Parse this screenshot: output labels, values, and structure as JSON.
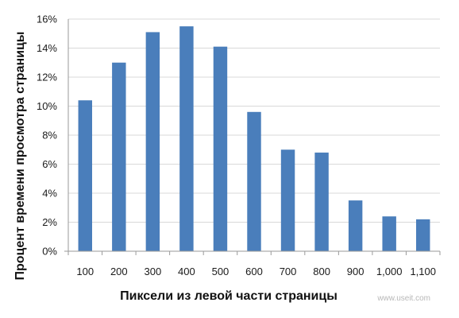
{
  "chart_data": {
    "type": "bar",
    "categories": [
      "100",
      "200",
      "300",
      "400",
      "500",
      "600",
      "700",
      "800",
      "900",
      "1,000",
      "1,100"
    ],
    "values": [
      10.4,
      13.0,
      15.1,
      15.5,
      14.1,
      9.6,
      7.0,
      6.8,
      3.5,
      2.4,
      2.2
    ],
    "xlabel": "Пиксели из левой части страницы",
    "ylabel": "Процент времени просмотра страницы",
    "ylim": [
      0,
      16
    ],
    "yticks": [
      "0%",
      "2%",
      "4%",
      "6%",
      "8%",
      "10%",
      "12%",
      "14%",
      "16%"
    ],
    "grid": true,
    "legend": "none",
    "bar_color": "#4a7ebb"
  },
  "watermark": "www.useit.com"
}
